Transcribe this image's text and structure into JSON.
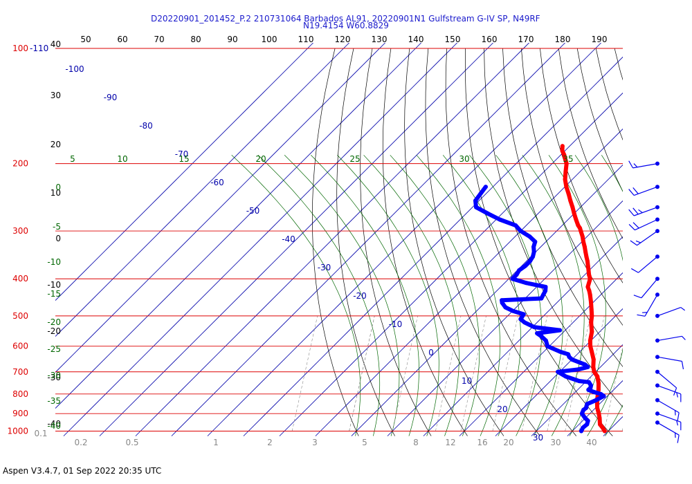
{
  "title": "D20220901_201452_P.2 210731064 Barbados AL91, 20220901N1 Gulfstream G-IV SP, N49RF",
  "subtitle": "N19.4154 W60.8829",
  "footer": "Aspen V3.4.7, 01 Sep 2022  20:35 UTC",
  "colors": {
    "isobar": "#dd0000",
    "isotherm": "#0000aa",
    "dry_adiabat": "#000000",
    "moist_adiabat": "#006600",
    "mixing_ratio": "#888888",
    "temperature": "#ff0000",
    "dewpoint": "#0000ff",
    "wind": "#0000ee"
  },
  "chart_data": {
    "type": "line",
    "subtype": "skew-T log-p sounding",
    "grid": true,
    "pressure_axis": {
      "label": "hPa",
      "scale": "log",
      "range": [
        1000,
        100
      ],
      "ticks": [
        "100",
        "200",
        "300",
        "400",
        "500",
        "600",
        "700",
        "800",
        "900",
        "1000"
      ],
      "top_extra_label": "-110"
    },
    "height_labels": [
      "40",
      "30",
      "20",
      "10",
      "0",
      "-10",
      "-20",
      "-30",
      "-40"
    ],
    "top_axis_ticks": [
      "50",
      "60",
      "70",
      "80",
      "90",
      "100",
      "110",
      "120",
      "130",
      "140",
      "150",
      "160",
      "170",
      "180",
      "190"
    ],
    "isotherm_labels": [
      "-100",
      "-90",
      "-80",
      "-70",
      "-60",
      "-50",
      "-40",
      "-30",
      "-20",
      "-10",
      "0",
      "10",
      "20",
      "30"
    ],
    "moist_labels_top": [
      "5",
      "10",
      "15",
      "20",
      "25",
      "30",
      "35"
    ],
    "moist_labels_left": [
      "0",
      "-5",
      "-10",
      "-15",
      "-20",
      "-25",
      "-30",
      "-35",
      "-40"
    ],
    "mixing_ratio_labels": [
      "0.1",
      "0.2",
      "0.5",
      "1",
      "2",
      "3",
      "5",
      "8",
      "12",
      "16",
      "20",
      "30",
      "40"
    ],
    "series": [
      {
        "name": "temperature",
        "p": [
          1000,
          980,
          960,
          925,
          900,
          870,
          850,
          820,
          800,
          780,
          750,
          720,
          700,
          680,
          650,
          620,
          600,
          580,
          550,
          520,
          500,
          480,
          460,
          440,
          430,
          420,
          400,
          390,
          380,
          370,
          360,
          350,
          340,
          330,
          320,
          310,
          300,
          295,
          290,
          280,
          270,
          260,
          250,
          240,
          230,
          220,
          210,
          200,
          195,
          190,
          185,
          180
        ],
        "value": [
          29.0,
          27.5,
          25.8,
          24.0,
          22.5,
          20.5,
          19.4,
          17.8,
          16.8,
          15.8,
          14.0,
          11.8,
          9.6,
          8.0,
          6.0,
          3.3,
          1.4,
          -0.2,
          -2.2,
          -5.0,
          -6.6,
          -8.6,
          -10.7,
          -13.0,
          -14.3,
          -15.8,
          -17.4,
          -18.9,
          -20.2,
          -21.6,
          -23.0,
          -24.6,
          -26.2,
          -27.8,
          -29.6,
          -31.3,
          -33.3,
          -34.3,
          -35.6,
          -37.8,
          -40.0,
          -42.2,
          -44.6,
          -47.0,
          -49.6,
          -52.0,
          -54.0,
          -56.0,
          -57.5,
          -59.0,
          -60.8,
          -62.0
        ]
      },
      {
        "name": "dewpoint",
        "p": [
          1000,
          980,
          960,
          940,
          925,
          900,
          880,
          870,
          850,
          830,
          810,
          800,
          790,
          780,
          770,
          760,
          745,
          740,
          720,
          700,
          690,
          680,
          670,
          660,
          650,
          640,
          630,
          620,
          600,
          580,
          565,
          555,
          545,
          535,
          520,
          510,
          495,
          485,
          475,
          462,
          455,
          450,
          440,
          430,
          420,
          410,
          400,
          390,
          380,
          370,
          360,
          350,
          340,
          330,
          320,
          310,
          300,
          290,
          280,
          270,
          260,
          250,
          240,
          230
        ],
        "value": [
          22.5,
          22.0,
          22.2,
          21.5,
          20.0,
          17.8,
          17.2,
          17.4,
          16.6,
          18.0,
          19.0,
          17.6,
          15.0,
          13.0,
          13.0,
          12.5,
          11.0,
          8.0,
          3.0,
          -0.5,
          4.5,
          6.5,
          5.0,
          2.5,
          0.0,
          -1.5,
          -2.5,
          -5.5,
          -10.5,
          -12.5,
          -15.0,
          -17.0,
          -11.5,
          -19.5,
          -23.5,
          -25.5,
          -26.0,
          -30.0,
          -33.0,
          -35.2,
          -36.0,
          -25.5,
          -26.0,
          -26.5,
          -27.5,
          -34.0,
          -39.0,
          -39.0,
          -39.5,
          -39.0,
          -39.0,
          -39.5,
          -40.5,
          -42.0,
          -43.0,
          -46.0,
          -50.0,
          -53.0,
          -59.0,
          -64.0,
          -69.0,
          -71.0,
          -71.5,
          -72.0
        ]
      }
    ],
    "wind_barbs": {
      "p": [
        200,
        230,
        260,
        280,
        300,
        350,
        400,
        440,
        500,
        580,
        640,
        700,
        760,
        830,
        900,
        950
      ],
      "speed_knots": [
        15,
        20,
        25,
        20,
        15,
        10,
        10,
        15,
        5,
        5,
        10,
        10,
        15,
        15,
        15,
        15
      ],
      "direction_deg": [
        260,
        250,
        250,
        245,
        235,
        230,
        220,
        210,
        70,
        80,
        100,
        130,
        110,
        120,
        110,
        120
      ]
    }
  }
}
